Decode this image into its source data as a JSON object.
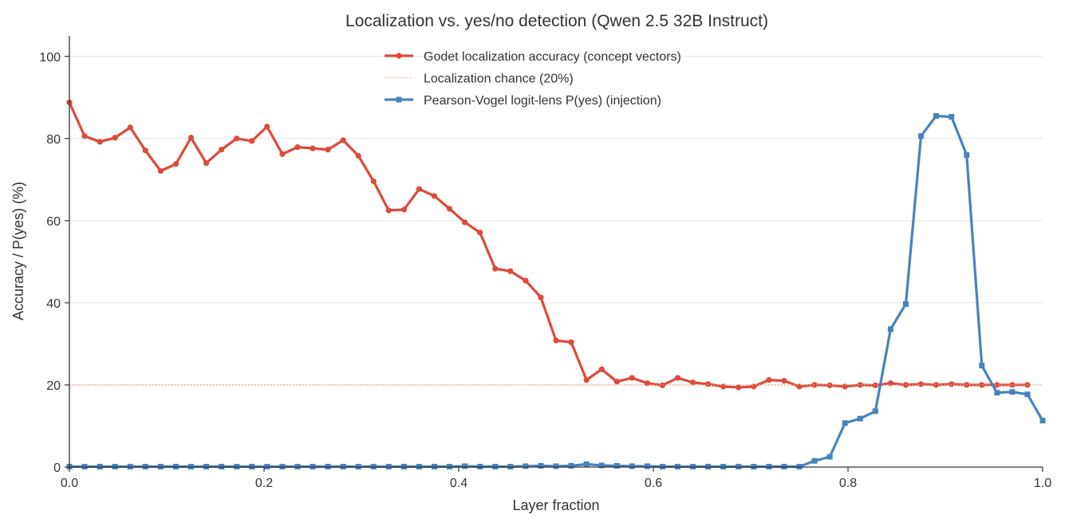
{
  "chart_data": {
    "type": "line",
    "title": "Localization vs. yes/no detection (Qwen 2.5 32B Instruct)",
    "xlabel": "Layer fraction",
    "ylabel": "Accuracy / P(yes) (%)",
    "xlim": [
      0.0,
      1.0
    ],
    "ylim": [
      0,
      105
    ],
    "xticks": [
      0.0,
      0.2,
      0.4,
      0.6,
      0.8,
      1.0
    ],
    "xtick_labels": [
      "0.0",
      "0.2",
      "0.4",
      "0.6",
      "0.8",
      "1.0"
    ],
    "yticks": [
      0,
      20,
      40,
      60,
      80,
      100
    ],
    "ytick_labels": [
      "0",
      "20",
      "40",
      "60",
      "80",
      "100"
    ],
    "grid": "horizontal",
    "legend_position": "top-center",
    "series": [
      {
        "name": "Godet localization accuracy (concept vectors)",
        "color": "#dd4a3a",
        "marker": "circle",
        "x": [
          0.0,
          0.0156,
          0.0313,
          0.0469,
          0.0625,
          0.0781,
          0.0938,
          0.1094,
          0.125,
          0.1406,
          0.1563,
          0.1719,
          0.1875,
          0.2031,
          0.2188,
          0.2344,
          0.25,
          0.2656,
          0.2813,
          0.2969,
          0.3125,
          0.3281,
          0.3438,
          0.3594,
          0.375,
          0.3906,
          0.4063,
          0.4219,
          0.4375,
          0.4531,
          0.4688,
          0.4844,
          0.5,
          0.5156,
          0.5313,
          0.5469,
          0.5625,
          0.5781,
          0.5938,
          0.6094,
          0.625,
          0.6406,
          0.6563,
          0.6719,
          0.6875,
          0.7031,
          0.7188,
          0.7344,
          0.75,
          0.7656,
          0.7813,
          0.7969,
          0.8125,
          0.8281,
          0.8438,
          0.8594,
          0.875,
          0.8906,
          0.9063,
          0.9219,
          0.9375,
          0.9531,
          0.9688,
          0.9844
        ],
        "values": [
          88.8,
          80.6,
          79.2,
          80.2,
          82.7,
          77.1,
          72.1,
          73.8,
          80.2,
          74.0,
          77.3,
          80.0,
          79.4,
          82.9,
          76.2,
          77.9,
          77.6,
          77.3,
          79.6,
          75.8,
          69.6,
          62.5,
          62.7,
          67.7,
          66.0,
          62.9,
          59.6,
          57.1,
          48.3,
          47.7,
          45.4,
          41.3,
          30.8,
          30.4,
          21.2,
          23.8,
          20.8,
          21.7,
          20.4,
          19.9,
          21.7,
          20.6,
          20.2,
          19.6,
          19.4,
          19.6,
          21.2,
          21.0,
          19.6,
          20.0,
          19.9,
          19.6,
          20.0,
          19.9,
          20.4,
          20.0,
          20.2,
          20.0,
          20.2,
          20.0,
          20.0,
          20.0,
          20.0,
          20.0
        ]
      },
      {
        "name": "Localization chance (20%)",
        "color": "#f0a18f",
        "style": "dotted",
        "x": [
          0.0,
          1.0
        ],
        "values": [
          20,
          20
        ]
      },
      {
        "name": "Pearson-Vogel logit-lens P(yes) (injection)",
        "color": "#4a82be",
        "marker": "square",
        "x": [
          0.0,
          0.0156,
          0.0313,
          0.0469,
          0.0625,
          0.0781,
          0.0938,
          0.1094,
          0.125,
          0.1406,
          0.1563,
          0.1719,
          0.1875,
          0.2031,
          0.2188,
          0.2344,
          0.25,
          0.2656,
          0.2813,
          0.2969,
          0.3125,
          0.3281,
          0.3438,
          0.3594,
          0.375,
          0.3906,
          0.4063,
          0.4219,
          0.4375,
          0.4531,
          0.4688,
          0.4844,
          0.5,
          0.5156,
          0.5313,
          0.5469,
          0.5625,
          0.5781,
          0.5938,
          0.6094,
          0.625,
          0.6406,
          0.6563,
          0.6719,
          0.6875,
          0.7031,
          0.7188,
          0.7344,
          0.75,
          0.7656,
          0.7813,
          0.7969,
          0.8125,
          0.8281,
          0.8438,
          0.8594,
          0.875,
          0.8906,
          0.9063,
          0.9219,
          0.9375,
          0.9531,
          0.9688,
          0.9844,
          1.0
        ],
        "values": [
          0.1,
          0.1,
          0.1,
          0.1,
          0.1,
          0.1,
          0.1,
          0.1,
          0.1,
          0.1,
          0.1,
          0.1,
          0.1,
          0.1,
          0.1,
          0.1,
          0.1,
          0.1,
          0.1,
          0.1,
          0.1,
          0.1,
          0.1,
          0.1,
          0.1,
          0.1,
          0.2,
          0.1,
          0.1,
          0.1,
          0.2,
          0.3,
          0.2,
          0.3,
          0.7,
          0.4,
          0.3,
          0.2,
          0.2,
          0.1,
          0.1,
          0.1,
          0.1,
          0.1,
          0.1,
          0.1,
          0.1,
          0.1,
          0.1,
          1.5,
          2.5,
          10.7,
          11.8,
          13.6,
          33.6,
          39.7,
          80.6,
          85.5,
          85.3,
          76.0,
          24.7,
          18.1,
          18.3,
          17.7,
          11.3
        ]
      }
    ]
  }
}
